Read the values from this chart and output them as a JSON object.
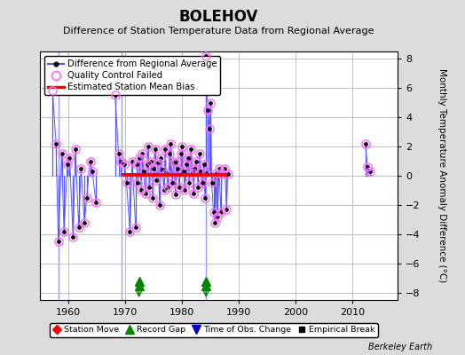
{
  "title": "BOLEHOV",
  "subtitle": "Difference of Station Temperature Data from Regional Average",
  "ylabel": "Monthly Temperature Anomaly Difference (°C)",
  "credit": "Berkeley Earth",
  "xlim": [
    1955,
    2018
  ],
  "ylim": [
    -8.5,
    8.5
  ],
  "yticks": [
    -8,
    -6,
    -4,
    -2,
    0,
    2,
    4,
    6,
    8
  ],
  "xticks": [
    1960,
    1970,
    1980,
    1990,
    2000,
    2010
  ],
  "bg_color": "#dcdcdc",
  "plot_bg_color": "#ffffff",
  "grid_color": "#c0c0c0",
  "blue_line_color": "#5555ff",
  "dot_color": "#111111",
  "qc_color": "#ff66ff",
  "bias_color": "#ff0000",
  "record_gaps": [
    1972.5,
    1984.3
  ],
  "vlines_x": [
    1958.3,
    1969.5,
    1984.3
  ],
  "bias_x_start": 1969.5,
  "bias_x_end": 1988.0,
  "bias_y": 0.05,
  "seg1_years": [
    1957.3,
    1957.9,
    1958.3,
    1958.9,
    1959.3,
    1959.9,
    1960.3,
    1960.9,
    1961.3,
    1961.9,
    1962.3,
    1962.9,
    1963.3,
    1963.9,
    1964.3,
    1964.9
  ],
  "seg1_vals": [
    5.8,
    2.2,
    -4.5,
    1.5,
    -3.8,
    0.8,
    1.2,
    -4.2,
    1.8,
    -3.5,
    0.5,
    -3.2,
    -1.5,
    1.0,
    0.3,
    -1.8
  ],
  "seg1_qc": [
    true,
    true,
    true,
    true,
    true,
    true,
    true,
    true,
    true,
    true,
    true,
    true,
    true,
    true,
    true,
    true
  ],
  "seg2_years": [
    1968.3,
    1968.9,
    1969.3,
    1969.9,
    1970.3,
    1970.9,
    1971.3,
    1971.9
  ],
  "seg2_vals": [
    5.5,
    1.5,
    1.0,
    0.8,
    -0.5,
    -3.8,
    1.0,
    -3.5
  ],
  "seg2_qc": [
    true,
    true,
    true,
    true,
    true,
    true,
    true,
    true
  ],
  "seg3_years": [
    1972.1,
    1972.3,
    1972.6,
    1972.9,
    1973.1,
    1973.3,
    1973.6,
    1973.9,
    1974.1,
    1974.3,
    1974.6,
    1974.9,
    1975.1,
    1975.3,
    1975.6,
    1975.9,
    1976.1,
    1976.3,
    1976.6,
    1976.9,
    1977.1,
    1977.3,
    1977.6,
    1977.9,
    1978.1,
    1978.3,
    1978.6,
    1978.9,
    1979.1,
    1979.3,
    1979.6,
    1979.9,
    1980.1,
    1980.3,
    1980.6,
    1980.9,
    1981.1,
    1981.3,
    1981.6,
    1981.9,
    1982.1,
    1982.3,
    1982.6,
    1982.9,
    1983.1,
    1983.3,
    1983.6,
    1983.9,
    1984.1,
    1984.3
  ],
  "seg3_vals": [
    0.8,
    -0.5,
    1.2,
    -1.0,
    1.5,
    0.3,
    -1.2,
    0.8,
    2.0,
    -0.8,
    1.0,
    -1.5,
    0.5,
    1.8,
    -0.3,
    0.9,
    -2.0,
    1.2,
    0.4,
    -1.0,
    1.8,
    0.2,
    -0.8,
    1.5,
    2.2,
    -0.5,
    0.9,
    -1.3,
    1.0,
    0.5,
    -0.8,
    1.5,
    2.0,
    0.3,
    -1.0,
    0.8,
    1.2,
    -0.5,
    1.8,
    0.2,
    -1.2,
    0.5,
    1.0,
    -0.8,
    1.5,
    0.3,
    -0.5,
    0.8,
    -1.5,
    0.2
  ],
  "seg3_qc": [
    true,
    true,
    true,
    true,
    true,
    true,
    true,
    true,
    true,
    true,
    true,
    true,
    true,
    true,
    true,
    true,
    true,
    true,
    true,
    true,
    true,
    true,
    true,
    true,
    true,
    true,
    true,
    true,
    true,
    true,
    true,
    true,
    true,
    true,
    true,
    true,
    true,
    true,
    true,
    true,
    true,
    true,
    true,
    true,
    true,
    true,
    true,
    true,
    true,
    true
  ],
  "seg4_years": [
    1984.3,
    1984.6,
    1984.9,
    1985.1,
    1985.3,
    1985.6,
    1985.9,
    1986.1,
    1986.3,
    1986.6,
    1986.9,
    1987.1,
    1987.6,
    1987.9,
    1988.1
  ],
  "seg4_vals": [
    8.2,
    4.5,
    3.2,
    5.0,
    -0.5,
    -2.5,
    -3.2,
    0.2,
    -2.8,
    0.5,
    -2.5,
    0.1,
    0.5,
    -2.3,
    0.1
  ],
  "seg4_qc": [
    true,
    true,
    true,
    true,
    true,
    true,
    true,
    true,
    true,
    true,
    true,
    true,
    true,
    true,
    true
  ],
  "seg5_years": [
    2012.3,
    2012.7,
    2013.1
  ],
  "seg5_vals": [
    2.2,
    0.6,
    0.3
  ],
  "seg5_qc": [
    true,
    true,
    true
  ]
}
